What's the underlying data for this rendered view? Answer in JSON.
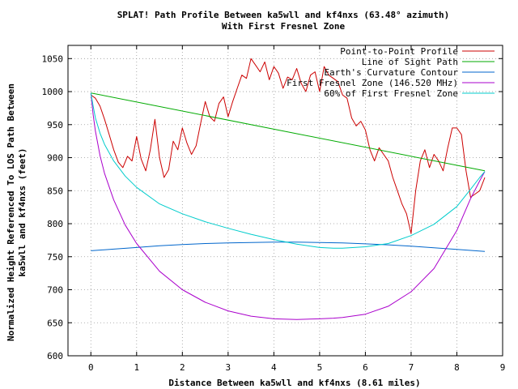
{
  "chart_data": {
    "type": "line",
    "title": "SPLAT! Path Profile Between ka5wll and kf4nxs (63.48° azimuth)",
    "subtitle": "With First Fresnel Zone",
    "xlabel": "Distance Between ka5wll and kf4nxs (8.61 miles)",
    "ylabel_line1": "Normalized Height Referenced To LOS Path Between",
    "ylabel_line2": "ka5wll and kf4nxs (feet)",
    "xlim": [
      -0.5,
      9
    ],
    "ylim": [
      600,
      1070
    ],
    "x_ticks": [
      0,
      1,
      2,
      3,
      4,
      5,
      6,
      7,
      8,
      9
    ],
    "y_ticks": [
      600,
      650,
      700,
      750,
      800,
      850,
      900,
      950,
      1000,
      1050
    ],
    "grid": true,
    "legend_position": "top-right",
    "colors": {
      "profile": "#cc0000",
      "los": "#00aa00",
      "earth": "#0066cc",
      "fresnel": "#aa00cc",
      "fresnel60": "#00cccc"
    },
    "series": [
      {
        "name": "Point-to-Point Profile",
        "key": "profile",
        "x": [
          0,
          0.1,
          0.2,
          0.3,
          0.4,
          0.5,
          0.6,
          0.7,
          0.8,
          0.9,
          1.0,
          1.1,
          1.2,
          1.3,
          1.4,
          1.5,
          1.6,
          1.7,
          1.8,
          1.9,
          2.0,
          2.1,
          2.2,
          2.3,
          2.4,
          2.5,
          2.6,
          2.7,
          2.8,
          2.9,
          3.0,
          3.1,
          3.2,
          3.3,
          3.4,
          3.5,
          3.6,
          3.7,
          3.8,
          3.9,
          4.0,
          4.1,
          4.2,
          4.3,
          4.4,
          4.5,
          4.6,
          4.7,
          4.8,
          4.9,
          5.0,
          5.1,
          5.2,
          5.3,
          5.4,
          5.5,
          5.6,
          5.7,
          5.8,
          5.9,
          6.0,
          6.1,
          6.2,
          6.3,
          6.4,
          6.5,
          6.6,
          6.7,
          6.8,
          6.9,
          7.0,
          7.1,
          7.2,
          7.3,
          7.4,
          7.5,
          7.6,
          7.7,
          7.8,
          7.9,
          8.0,
          8.1,
          8.2,
          8.3,
          8.4,
          8.5,
          8.61
        ],
        "y": [
          995,
          990,
          978,
          958,
          935,
          912,
          893,
          885,
          902,
          895,
          932,
          898,
          880,
          912,
          958,
          900,
          870,
          882,
          925,
          912,
          945,
          922,
          905,
          918,
          952,
          985,
          962,
          955,
          982,
          992,
          962,
          985,
          1005,
          1025,
          1020,
          1050,
          1040,
          1030,
          1045,
          1018,
          1038,
          1028,
          1005,
          1022,
          1018,
          1035,
          1012,
          1000,
          1025,
          1030,
          1000,
          1038,
          1025,
          1020,
          1015,
          995,
          990,
          960,
          948,
          955,
          942,
          912,
          895,
          915,
          905,
          895,
          870,
          850,
          830,
          815,
          785,
          850,
          895,
          912,
          885,
          905,
          895,
          880,
          915,
          945,
          945,
          935,
          880,
          840,
          845,
          850,
          870
        ]
      },
      {
        "name": "Line of Sight Path",
        "key": "los",
        "x": [
          0,
          8.61
        ],
        "y": [
          998,
          880
        ]
      },
      {
        "name": "Earth's Curvature Contour",
        "key": "earth",
        "x": [
          0,
          0.5,
          1.0,
          1.5,
          2.0,
          2.5,
          3.0,
          3.5,
          4.0,
          4.3,
          4.5,
          5.0,
          5.5,
          6.0,
          6.5,
          7.0,
          7.5,
          8.0,
          8.61
        ],
        "y": [
          759,
          761.5,
          764,
          766.5,
          768.5,
          770,
          771,
          771.5,
          772,
          772,
          772,
          771.5,
          771,
          769.5,
          768,
          766,
          763.5,
          761,
          758
        ]
      },
      {
        "name": "First Fresnel Zone (146.520 MHz)",
        "key": "fresnel",
        "x": [
          0,
          0.05,
          0.1,
          0.2,
          0.3,
          0.5,
          0.75,
          1.0,
          1.5,
          2.0,
          2.5,
          3.0,
          3.5,
          4.0,
          4.5,
          5.0,
          5.3,
          5.5,
          6.0,
          6.5,
          7.0,
          7.5,
          8.0,
          8.3,
          8.5,
          8.61
        ],
        "y": [
          998,
          965,
          940,
          903,
          876,
          836,
          798,
          770,
          728,
          700,
          681,
          668,
          660,
          656,
          655,
          656,
          657,
          658,
          663,
          675,
          697,
          732,
          790,
          838,
          865,
          879
        ]
      },
      {
        "name": "60% of First Fresnel Zone",
        "key": "fresnel60",
        "x": [
          0,
          0.05,
          0.1,
          0.2,
          0.3,
          0.5,
          0.75,
          1.0,
          1.5,
          2.0,
          2.5,
          3.0,
          3.5,
          4.0,
          4.5,
          5.0,
          5.3,
          5.5,
          6.0,
          6.5,
          7.0,
          7.5,
          8.0,
          8.3,
          8.5,
          8.61
        ],
        "y": [
          998,
          978,
          960,
          937,
          920,
          895,
          872,
          855,
          830,
          815,
          803,
          793,
          784,
          776,
          769,
          764,
          763,
          763,
          765,
          770,
          782,
          799,
          826,
          852,
          870,
          879
        ]
      }
    ]
  }
}
